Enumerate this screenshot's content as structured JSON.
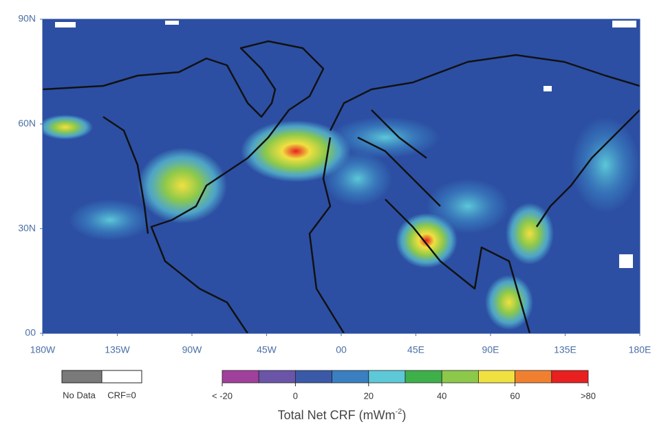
{
  "map": {
    "background": "#2c4fa3",
    "xlim": [
      -180,
      180
    ],
    "ylim": [
      0,
      90
    ],
    "xticks": [
      {
        "value": -180,
        "label": "180W"
      },
      {
        "value": -135,
        "label": "135W"
      },
      {
        "value": -90,
        "label": "90W"
      },
      {
        "value": -45,
        "label": "45W"
      },
      {
        "value": 0,
        "label": "00"
      },
      {
        "value": 45,
        "label": "45E"
      },
      {
        "value": 90,
        "label": "90E"
      },
      {
        "value": 135,
        "label": "135E"
      },
      {
        "value": 180,
        "label": "180E"
      }
    ],
    "yticks": [
      {
        "value": 0,
        "label": "00"
      },
      {
        "value": 30,
        "label": "30N"
      },
      {
        "value": 60,
        "label": "60N"
      },
      {
        "value": 90,
        "label": "90N"
      }
    ]
  },
  "legend": {
    "items": [
      {
        "label": "No Data",
        "color": "#7a7a7a"
      },
      {
        "label": "CRF=0",
        "color": "#ffffff"
      }
    ]
  },
  "colorbar": {
    "lim": [
      -20,
      80
    ],
    "colors": [
      "#a0409c",
      "#6a55a8",
      "#3a5aa8",
      "#3a7fc0",
      "#5cc8d8",
      "#3eb04a",
      "#8cc84a",
      "#f0e040",
      "#f08030",
      "#e82020"
    ],
    "ticks": [
      {
        "value": -20,
        "label": "< -20"
      },
      0,
      20,
      40,
      60,
      {
        "value": 80,
        "label": ">80"
      }
    ],
    "title": "Total Net CRF (mWm",
    "title_sup": "-2",
    "title_end": ")"
  }
}
